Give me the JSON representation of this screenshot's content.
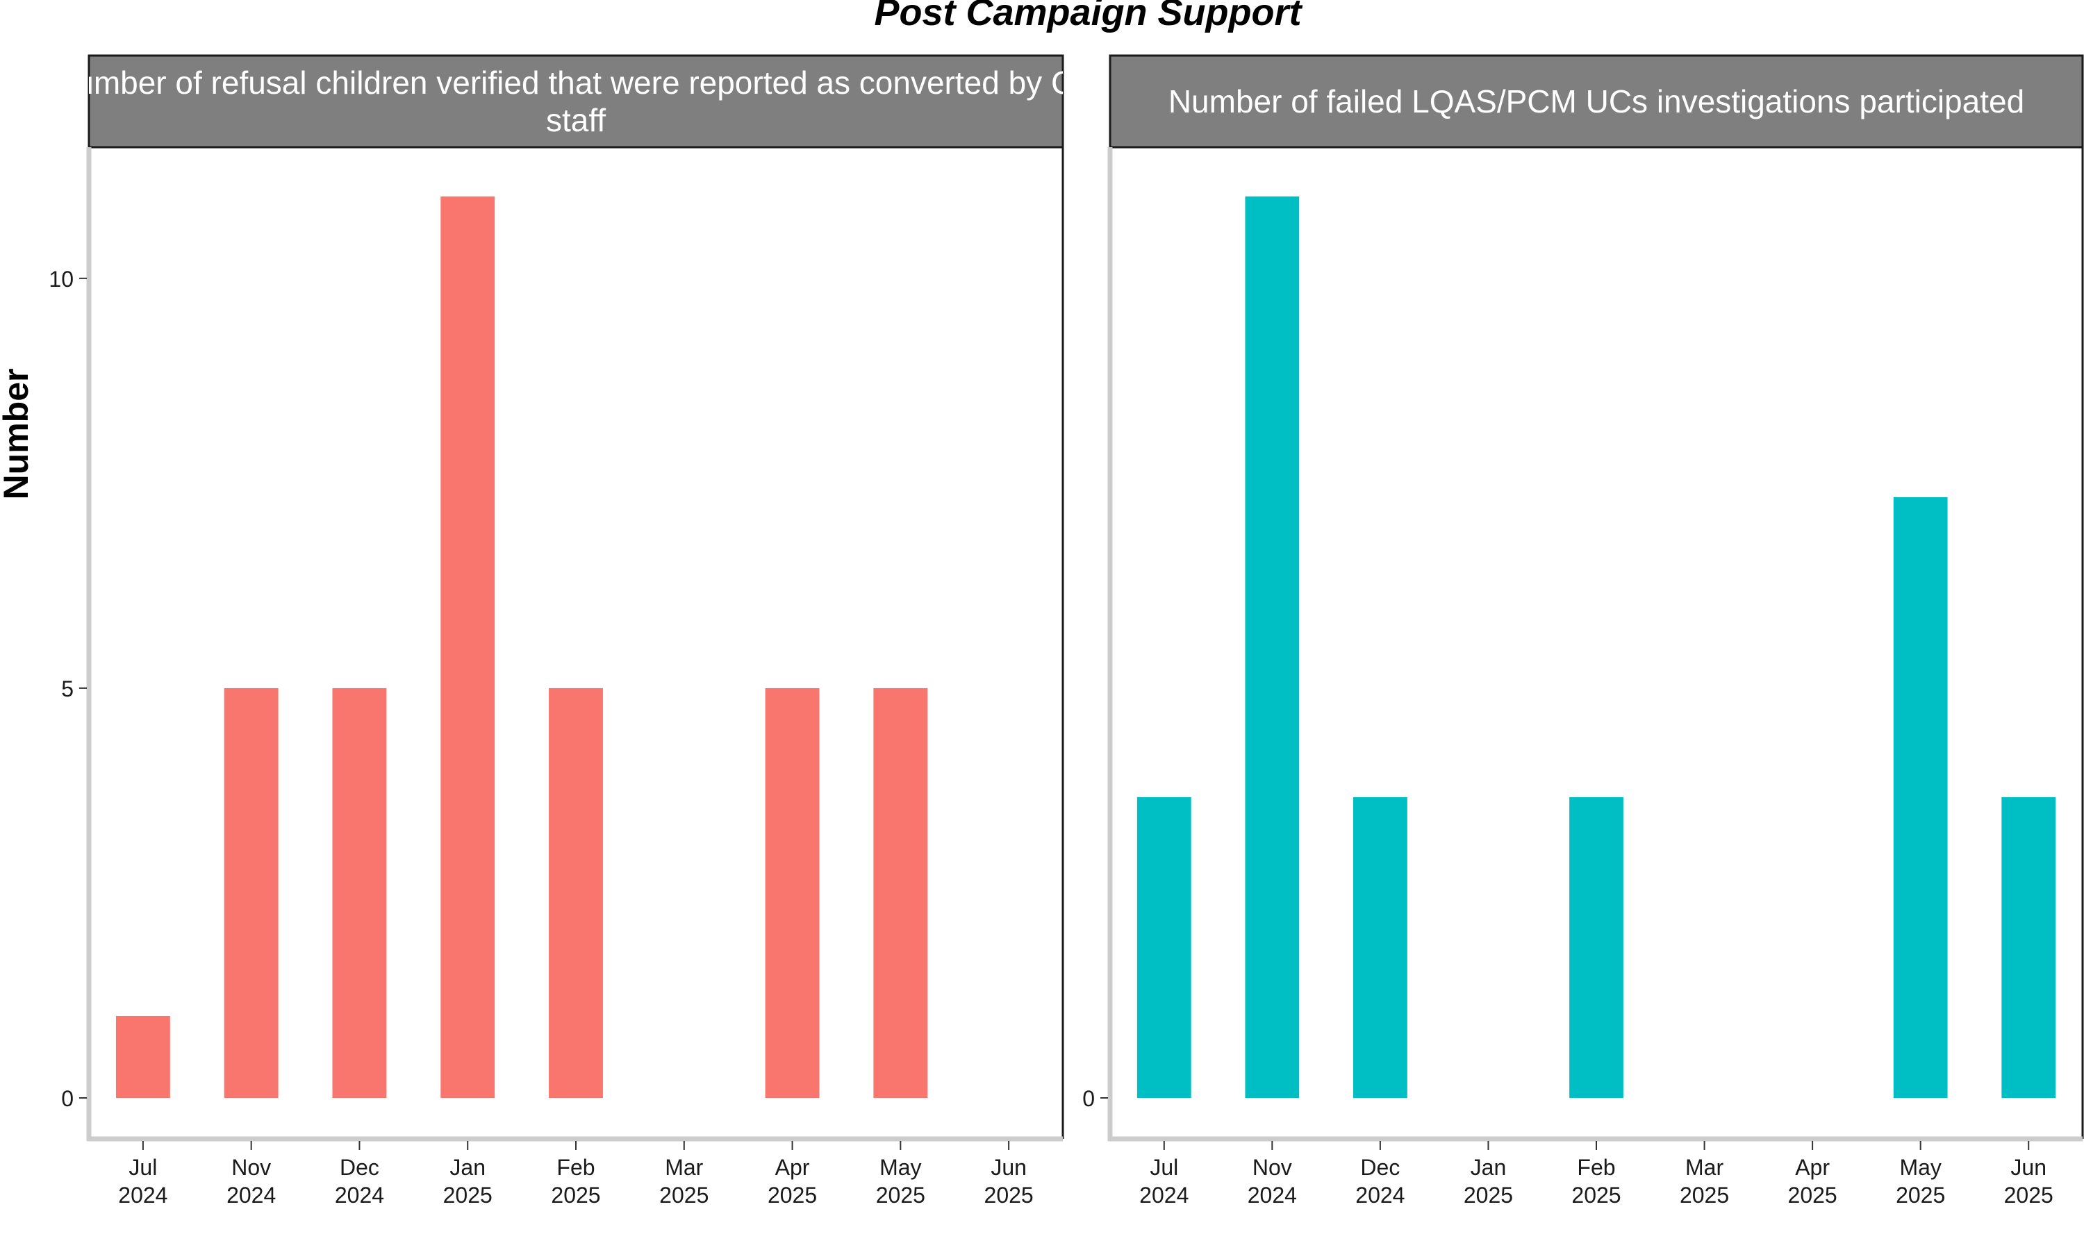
{
  "chart_data": {
    "type": "bar",
    "title": "Post Campaign Support",
    "ylabel": "Number",
    "xlabel": "",
    "ylim": [
      -0.5,
      11.6
    ],
    "y_ticks": [
      0,
      5,
      10
    ],
    "grid": false,
    "legend": "none",
    "panels": [
      {
        "title_lines": [
          "Number of refusal children verified that were reported as converted by CO",
          "staff"
        ],
        "color": "#F8766D",
        "categories": [
          "Jul\n2024",
          "Nov\n2024",
          "Dec\n2024",
          "Jan\n2025",
          "Feb\n2025",
          "Mar\n2025",
          "Apr\n2025",
          "May\n2025",
          "Jun\n2025"
        ],
        "values": [
          1,
          5,
          5,
          11,
          5,
          0,
          5,
          5,
          0
        ]
      },
      {
        "title_lines": [
          "Number of failed LQAS/PCM UCs investigations participated"
        ],
        "color": "#00BFC4",
        "categories": [
          "Jul\n2024",
          "Nov\n2024",
          "Dec\n2024",
          "Jan\n2025",
          "Feb\n2025",
          "Mar\n2025",
          "Apr\n2025",
          "May\n2025",
          "Jun\n2025"
        ],
        "values": [
          3.67,
          11,
          3.67,
          0,
          3.67,
          0,
          0,
          7.33,
          3.67
        ]
      }
    ]
  }
}
